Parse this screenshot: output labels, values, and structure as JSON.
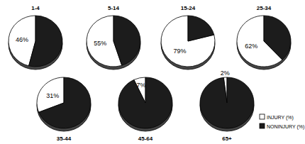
{
  "chart_data": {
    "type": "pie",
    "categories": [
      "1-4",
      "5-14",
      "15-24",
      "25-34",
      "35-44",
      "45-64",
      "65+"
    ],
    "series": [
      {
        "name": "INJURY (%)",
        "color": "#ffffff",
        "values": [
          46,
          55,
          79,
          62,
          31,
          7,
          2
        ],
        "value_labels": [
          "46%",
          "55%",
          "79%",
          "62%",
          "31%",
          "7%",
          "2%"
        ],
        "data_labels": true
      },
      {
        "name": "NONINJURY (%)",
        "color": "#1c1c1c",
        "values": [
          54,
          45,
          21,
          38,
          69,
          93,
          98
        ]
      }
    ],
    "legend": "lower right"
  }
}
